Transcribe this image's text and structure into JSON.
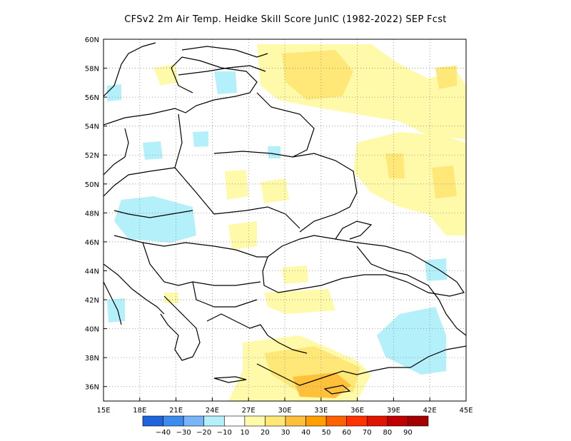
{
  "title": "CFSv2  2m Air Temp. Heidke Skill Score JunIC (1982-2022) SEP Fcst",
  "map": {
    "lon_range": [
      15,
      45
    ],
    "lat_range": [
      35,
      60
    ],
    "lon_ticks": [
      "15E",
      "18E",
      "21E",
      "24E",
      "27E",
      "30E",
      "33E",
      "36E",
      "39E",
      "42E",
      "45E"
    ],
    "lat_ticks": [
      "36N",
      "38N",
      "40N",
      "42N",
      "44N",
      "46N",
      "48N",
      "50N",
      "52N",
      "54N",
      "56N",
      "58N",
      "60N"
    ],
    "grid": "dotted"
  },
  "colorbar": {
    "colors": [
      "#1e64dc",
      "#3c8cf0",
      "#78b4f8",
      "#b4f0fa",
      "#ffffff",
      "#fffaaa",
      "#ffe878",
      "#ffc03c",
      "#ffa000",
      "#ff6000",
      "#ff3200",
      "#e11400",
      "#c00000",
      "#a50000"
    ],
    "labels": [
      "-40",
      "-30",
      "-20",
      "-10",
      "10",
      "20",
      "30",
      "40",
      "50",
      "60",
      "70",
      "80",
      "90"
    ]
  },
  "regions": [
    {
      "name": "yellow-north-russia",
      "color": "#fffaaa",
      "lon": [
        36.5,
        44.5
      ],
      "lat": [
        54.5,
        59.5
      ]
    },
    {
      "name": "deep-yellow-north-russia",
      "color": "#ffe878",
      "lon": [
        30,
        34.5
      ],
      "lat": [
        56.5,
        58.5
      ]
    },
    {
      "name": "yellow-volga",
      "color": "#fffaaa",
      "lon": [
        35,
        45
      ],
      "lat": [
        48,
        54
      ]
    },
    {
      "name": "deep-yellow-volga",
      "color": "#ffe878",
      "lon": [
        40,
        42.5
      ],
      "lat": [
        49.5,
        51.5
      ]
    },
    {
      "name": "orange-anatolia",
      "color": "#ffc03c",
      "lon": [
        31,
        35
      ],
      "lat": [
        35.2,
        36.6
      ]
    },
    {
      "name": "yellow-anatolia",
      "color": "#fffaaa",
      "lon": [
        26,
        36
      ],
      "lat": [
        35,
        38.5
      ]
    },
    {
      "name": "blue-hungary",
      "color": "#b4f0fa",
      "lon": [
        17,
        22
      ],
      "lat": [
        46.5,
        49
      ]
    },
    {
      "name": "blue-east-turkey",
      "color": "#b4f0fa",
      "lon": [
        38,
        42.5
      ],
      "lat": [
        37,
        41
      ]
    },
    {
      "name": "blue-baltic",
      "color": "#b4f0fa",
      "lon": [
        24,
        26.5
      ],
      "lat": [
        56,
        57.5
      ]
    }
  ]
}
